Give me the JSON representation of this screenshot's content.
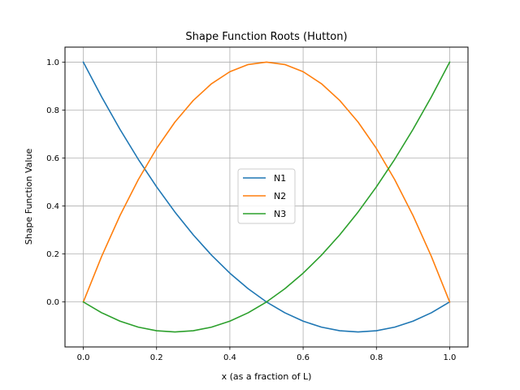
{
  "chart_data": {
    "type": "line",
    "title": "Shape Function Roots (Hutton)",
    "xlabel": "x (as a fraction of L)",
    "ylabel": "Shape Function Value",
    "xlim": [
      -0.05,
      1.05
    ],
    "ylim": [
      -0.1875,
      1.0625
    ],
    "xticks": [
      0.0,
      0.2,
      0.4,
      0.6,
      0.8,
      1.0
    ],
    "yticks": [
      0.0,
      0.2,
      0.4,
      0.6,
      0.8,
      1.0
    ],
    "xtick_labels": [
      "0.0",
      "0.2",
      "0.4",
      "0.6",
      "0.8",
      "1.0"
    ],
    "ytick_labels": [
      "0.0",
      "0.2",
      "0.4",
      "0.6",
      "0.8",
      "1.0"
    ],
    "grid": true,
    "legend_position": "center",
    "x": [
      0.0,
      0.05,
      0.1,
      0.15,
      0.2,
      0.25,
      0.3,
      0.35,
      0.4,
      0.45,
      0.5,
      0.55,
      0.6,
      0.65,
      0.7,
      0.75,
      0.8,
      0.85,
      0.9,
      0.95,
      1.0
    ],
    "series": [
      {
        "name": "N1",
        "color": "#1f77b4",
        "values": [
          1.0,
          0.855,
          0.72,
          0.595,
          0.48,
          0.375,
          0.28,
          0.195,
          0.12,
          0.055,
          0.0,
          -0.045,
          -0.08,
          -0.105,
          -0.12,
          -0.125,
          -0.12,
          -0.105,
          -0.08,
          -0.045,
          0.0
        ]
      },
      {
        "name": "N2",
        "color": "#ff7f0e",
        "values": [
          0.0,
          0.19,
          0.36,
          0.51,
          0.64,
          0.75,
          0.84,
          0.91,
          0.96,
          0.99,
          1.0,
          0.99,
          0.96,
          0.91,
          0.84,
          0.75,
          0.64,
          0.51,
          0.36,
          0.19,
          0.0
        ]
      },
      {
        "name": "N3",
        "color": "#2ca02c",
        "values": [
          0.0,
          -0.045,
          -0.08,
          -0.105,
          -0.12,
          -0.125,
          -0.12,
          -0.105,
          -0.08,
          -0.045,
          0.0,
          0.055,
          0.12,
          0.195,
          0.28,
          0.375,
          0.48,
          0.595,
          0.72,
          0.855,
          1.0
        ]
      }
    ]
  }
}
